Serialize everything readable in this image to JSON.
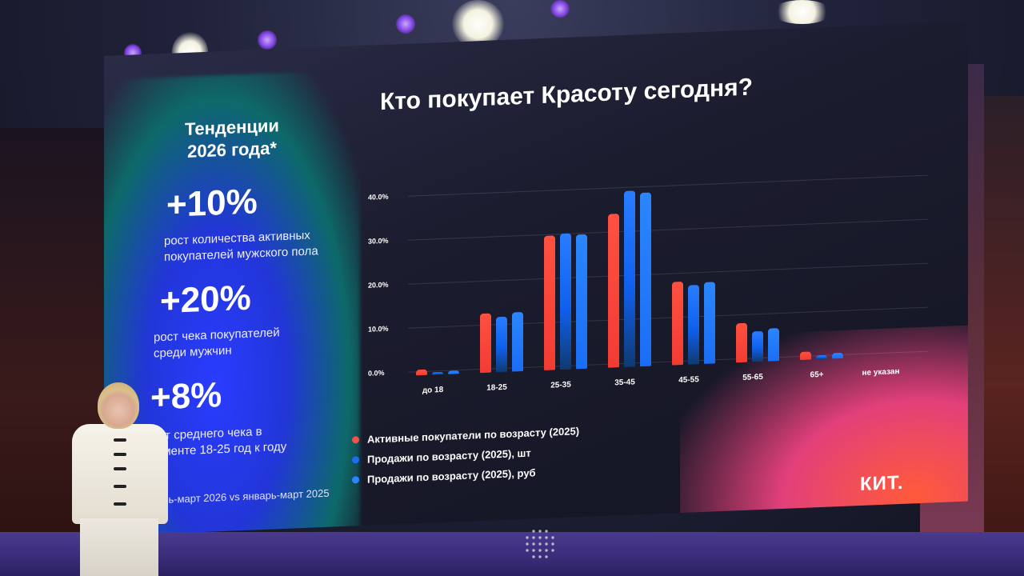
{
  "slide": {
    "left_panel": {
      "title_line1": "Тенденции",
      "title_line2": "2026 года*",
      "stats": [
        {
          "value": "+10%",
          "desc_line1": "рост количества активных",
          "desc_line2": "покупателей мужского пола"
        },
        {
          "value": "+20%",
          "desc_line1": "рост чека покупателей",
          "desc_line2": "среди мужчин"
        },
        {
          "value": "+8%",
          "desc_line1": "рост среднего чека в",
          "desc_line2": "сегменте 18-25 год к году"
        }
      ],
      "footnote": "*январь-март 2026 vs январь-март 2025"
    },
    "logo": "КИТ."
  },
  "chart_data": {
    "type": "bar",
    "title": "Кто покупает Красоту сегодня?",
    "xlabel": "",
    "ylabel": "",
    "ylim": [
      0,
      40
    ],
    "y_ticks": [
      "0.0%",
      "10.0%",
      "20.0%",
      "30.0%",
      "40.0%"
    ],
    "grid": true,
    "legend_position": "bottom-left",
    "categories": [
      "до 18",
      "18-25",
      "25-35",
      "35-45",
      "45-55",
      "55-65",
      "65+",
      "не указан"
    ],
    "series": [
      {
        "name": "Активные покупатели по возрасту (2025)",
        "color": "#f23c32",
        "values": [
          1.2,
          13.5,
          30.5,
          35.0,
          19.0,
          9.0,
          1.8,
          0
        ]
      },
      {
        "name": "Продажи по возрасту (2025), шт",
        "color": "#1a6ef5",
        "values": [
          0.5,
          12.5,
          31.0,
          40.0,
          18.0,
          7.0,
          1.0,
          0
        ]
      },
      {
        "name": "Продажи по возрасту (2025), руб",
        "color": "#2b86ff",
        "values": [
          0.8,
          13.5,
          30.5,
          39.5,
          18.5,
          7.5,
          1.2,
          0
        ]
      }
    ]
  }
}
